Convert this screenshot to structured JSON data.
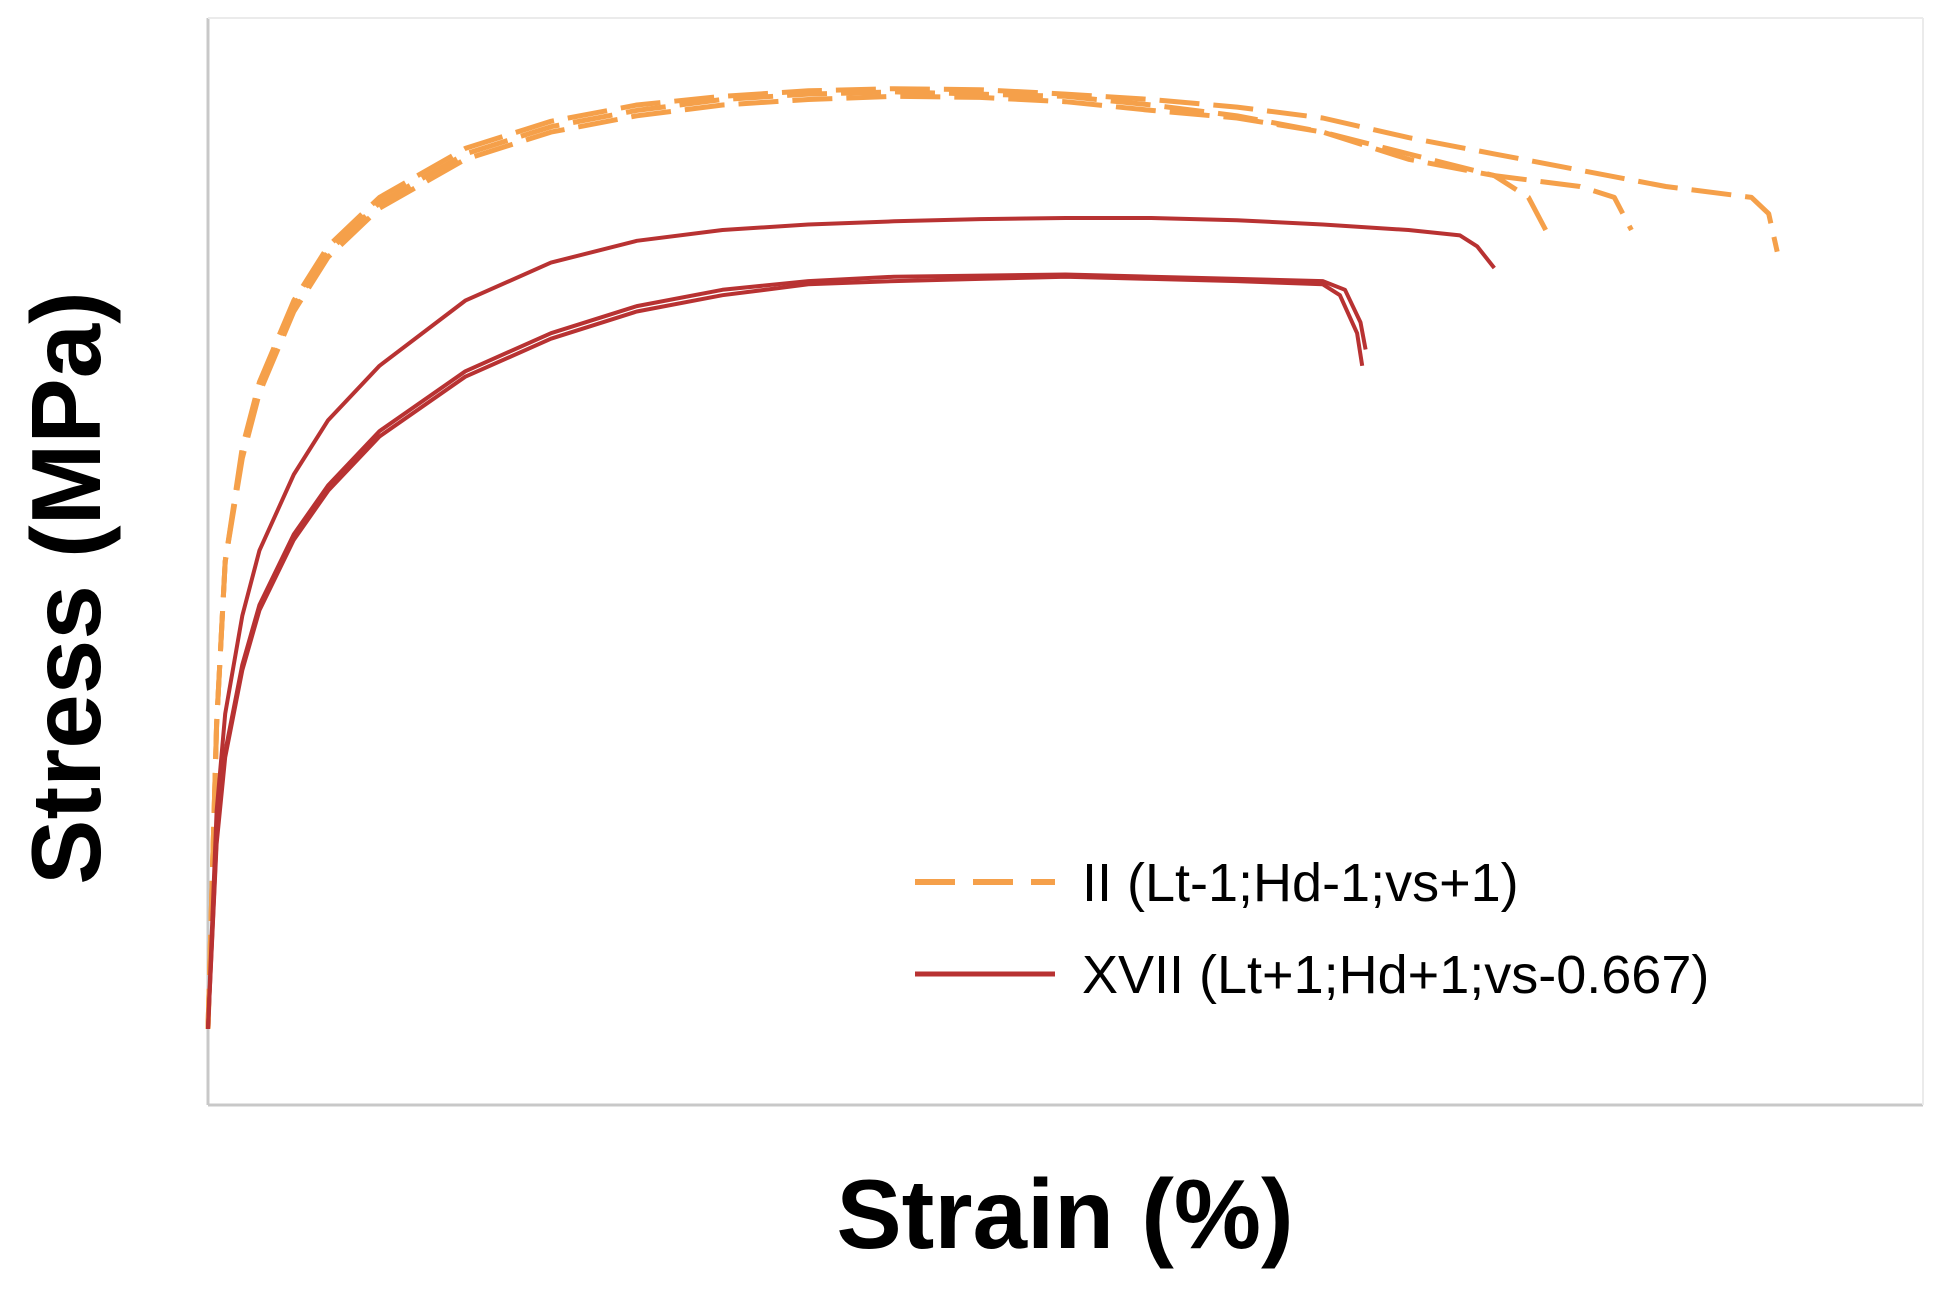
{
  "chart_data": {
    "type": "line",
    "title": "",
    "xlabel": "Strain (%)",
    "ylabel": "Stress (MPa)",
    "x_ticks_shown": false,
    "y_ticks_shown": false,
    "grid": false,
    "legend_position": "bottom-right",
    "xlim": [
      0,
      100
    ],
    "ylim": [
      0,
      100
    ],
    "units_note": "axes are unlabeled; values read on a normalized 0-100 scale of the plot frame",
    "series": [
      {
        "name": "II (Lt-1;Hd-1;vs+1)",
        "style": "dashed",
        "color": "#f5a04a",
        "curves": [
          {
            "points": [
              [
                0,
                7
              ],
              [
                0.5,
                35
              ],
              [
                1,
                50
              ],
              [
                2,
                60
              ],
              [
                3,
                66
              ],
              [
                5,
                73.5
              ],
              [
                7,
                78.5
              ],
              [
                10,
                83
              ],
              [
                15,
                87.5
              ],
              [
                20,
                90
              ],
              [
                25,
                91.5
              ],
              [
                30,
                92.5
              ],
              [
                35,
                93
              ],
              [
                40,
                93.2
              ],
              [
                45,
                93
              ],
              [
                50,
                92.8
              ],
              [
                55,
                92
              ],
              [
                60,
                91
              ],
              [
                65,
                89.5
              ],
              [
                70,
                87
              ],
              [
                75,
                85.5
              ],
              [
                77,
                83.5
              ],
              [
                78,
                80.5
              ]
            ]
          },
          {
            "points": [
              [
                0,
                7
              ],
              [
                0.5,
                35
              ],
              [
                1,
                50
              ],
              [
                2,
                59.5
              ],
              [
                3,
                65.5
              ],
              [
                5,
                73
              ],
              [
                7,
                78
              ],
              [
                10,
                82.5
              ],
              [
                15,
                87
              ],
              [
                20,
                89.5
              ],
              [
                25,
                91
              ],
              [
                30,
                92
              ],
              [
                35,
                92.5
              ],
              [
                40,
                92.8
              ],
              [
                45,
                92.7
              ],
              [
                50,
                92.3
              ],
              [
                55,
                91.5
              ],
              [
                60,
                90.8
              ],
              [
                65,
                89.5
              ],
              [
                70,
                87.5
              ],
              [
                75,
                85.5
              ],
              [
                80,
                84.5
              ],
              [
                82,
                83.5
              ],
              [
                83,
                80.5
              ]
            ]
          },
          {
            "points": [
              [
                0,
                7
              ],
              [
                0.5,
                35
              ],
              [
                1,
                50
              ],
              [
                2,
                60.5
              ],
              [
                3,
                66.5
              ],
              [
                5,
                74
              ],
              [
                7,
                79
              ],
              [
                10,
                83.5
              ],
              [
                15,
                88
              ],
              [
                20,
                90.5
              ],
              [
                25,
                92
              ],
              [
                30,
                92.8
              ],
              [
                35,
                93.3
              ],
              [
                40,
                93.5
              ],
              [
                45,
                93.4
              ],
              [
                50,
                93
              ],
              [
                55,
                92.5
              ],
              [
                60,
                91.8
              ],
              [
                65,
                90.8
              ],
              [
                70,
                89
              ],
              [
                75,
                87.5
              ],
              [
                80,
                86
              ],
              [
                85,
                84.5
              ],
              [
                90,
                83.5
              ],
              [
                91,
                82
              ],
              [
                91.5,
                78.5
              ]
            ]
          }
        ]
      },
      {
        "name": "XVII (Lt+1;Hd+1;vs-0.667)",
        "style": "solid",
        "color": "#b83232",
        "curves": [
          {
            "points": [
              [
                0,
                7
              ],
              [
                0.5,
                27
              ],
              [
                1,
                36
              ],
              [
                2,
                45
              ],
              [
                3,
                51
              ],
              [
                5,
                58
              ],
              [
                7,
                63
              ],
              [
                10,
                68
              ],
              [
                15,
                74
              ],
              [
                20,
                77.5
              ],
              [
                25,
                79.5
              ],
              [
                30,
                80.5
              ],
              [
                35,
                81
              ],
              [
                40,
                81.3
              ],
              [
                45,
                81.5
              ],
              [
                50,
                81.6
              ],
              [
                55,
                81.6
              ],
              [
                60,
                81.4
              ],
              [
                65,
                81
              ],
              [
                70,
                80.5
              ],
              [
                73,
                80
              ],
              [
                74,
                79
              ],
              [
                75,
                77
              ]
            ]
          },
          {
            "points": [
              [
                0,
                7
              ],
              [
                0.5,
                24
              ],
              [
                1,
                32
              ],
              [
                2,
                40
              ],
              [
                3,
                45.5
              ],
              [
                5,
                52
              ],
              [
                7,
                56.5
              ],
              [
                10,
                61.5
              ],
              [
                15,
                67
              ],
              [
                20,
                70.5
              ],
              [
                25,
                73
              ],
              [
                30,
                74.5
              ],
              [
                35,
                75.5
              ],
              [
                40,
                75.8
              ],
              [
                45,
                76
              ],
              [
                50,
                76.2
              ],
              [
                55,
                76
              ],
              [
                60,
                75.8
              ],
              [
                65,
                75.5
              ],
              [
                66,
                74.5
              ],
              [
                67,
                71
              ],
              [
                67.3,
                68
              ]
            ]
          },
          {
            "points": [
              [
                0,
                7
              ],
              [
                0.5,
                24.5
              ],
              [
                1,
                32.5
              ],
              [
                2,
                40.5
              ],
              [
                3,
                46
              ],
              [
                5,
                52.5
              ],
              [
                7,
                57
              ],
              [
                10,
                62
              ],
              [
                15,
                67.5
              ],
              [
                20,
                71
              ],
              [
                25,
                73.5
              ],
              [
                30,
                75
              ],
              [
                35,
                75.8
              ],
              [
                40,
                76.2
              ],
              [
                45,
                76.3
              ],
              [
                50,
                76.4
              ],
              [
                55,
                76.2
              ],
              [
                60,
                76
              ],
              [
                65,
                75.8
              ],
              [
                66.3,
                75
              ],
              [
                67.2,
                72
              ],
              [
                67.5,
                69.5
              ]
            ]
          }
        ]
      }
    ]
  }
}
